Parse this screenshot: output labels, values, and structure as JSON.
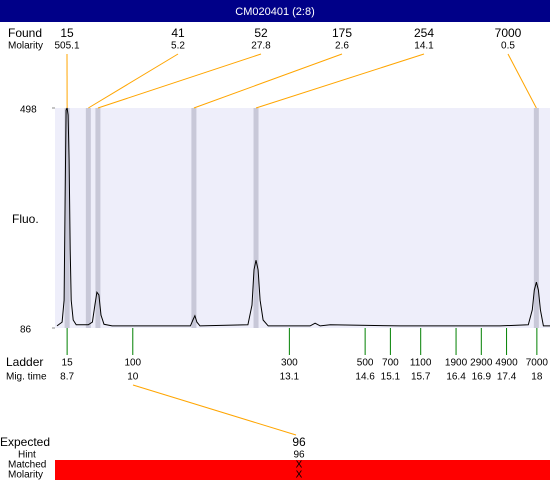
{
  "title": "CM020401 (2:8)",
  "chart_data": {
    "type": "electropherogram",
    "y_label": "Fluo.",
    "ylim": [
      86,
      498
    ],
    "yticks": [
      86,
      498
    ],
    "xlim": [
      8.46,
      18.26
    ],
    "trace": {
      "x": [
        8.5,
        8.6,
        8.64,
        8.66,
        8.68,
        8.7,
        8.72,
        8.74,
        8.76,
        8.78,
        8.82,
        8.88,
        9.12,
        9.2,
        9.25,
        9.29,
        9.33,
        9.37,
        9.43,
        9.59,
        11.14,
        11.19,
        11.23,
        11.27,
        11.33,
        12.28,
        12.36,
        12.4,
        12.44,
        12.48,
        12.52,
        12.58,
        12.68,
        13.51,
        13.61,
        13.71,
        13.91,
        15.29,
        17.27,
        17.83,
        17.91,
        17.95,
        17.99,
        18.03,
        18.07,
        18.13,
        18.26
      ],
      "values": [
        90,
        97,
        138,
        326,
        494,
        498,
        485,
        401,
        232,
        138,
        101,
        92,
        92,
        97,
        129,
        153,
        148,
        110,
        93,
        90,
        90,
        101,
        109,
        97,
        90,
        92,
        129,
        195,
        213,
        195,
        138,
        101,
        90,
        90,
        95,
        90,
        92,
        90,
        90,
        92,
        120,
        157,
        172,
        157,
        120,
        90,
        90
      ]
    },
    "found": {
      "label": "Found",
      "molarity_label": "Molarity",
      "sizes": [
        15,
        41,
        52,
        175,
        254,
        7000
      ],
      "molarity": [
        505.1,
        5.2,
        27.8,
        2.6,
        14.1,
        0.5
      ],
      "times": [
        8.7,
        9.12,
        9.31,
        11.21,
        12.44,
        17.99
      ]
    },
    "ladder": {
      "label": "Ladder",
      "time_label": "Mig. time",
      "sizes": [
        15,
        100,
        300,
        500,
        700,
        1100,
        1900,
        2900,
        4900,
        7000
      ],
      "times": [
        8.7,
        10,
        13.1,
        14.6,
        15.1,
        15.7,
        16.4,
        16.9,
        17.4,
        18
      ]
    },
    "expected": {
      "label": "Expected",
      "value": 96,
      "hint_label": "Hint",
      "hint": 96,
      "matched_label": "Matched",
      "matched": "X",
      "molarity_label": "Molarity",
      "molarity": "X"
    }
  }
}
